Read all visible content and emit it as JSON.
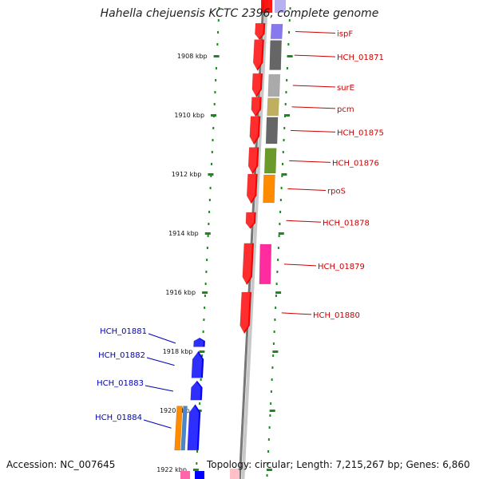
{
  "map": {
    "title": "Hahella chejuensis KCTC 2396, complete genome",
    "accession": "Accession: NC_007645",
    "summary": "Topology: circular; Length: 7,215,267 bp; Genes: 6,860",
    "colors": {
      "forward_label": "#cc0000",
      "reverse_label": "#0000bb",
      "forward_gene": "#ff0000",
      "reverse_gene": "#0000ff",
      "backbone": "#777777",
      "ruler": "#1a8a1a"
    },
    "ticks": [
      {
        "label": "1908 kbp",
        "kbp": 1908
      },
      {
        "label": "1910 kbp",
        "kbp": 1910
      },
      {
        "label": "1912 kbp",
        "kbp": 1912
      },
      {
        "label": "1914 kbp",
        "kbp": 1914
      },
      {
        "label": "1916 kbp",
        "kbp": 1916
      },
      {
        "label": "1918 kbp",
        "kbp": 1918
      },
      {
        "label": "1920 kbp",
        "kbp": 1920
      },
      {
        "label": "1922 kbp",
        "kbp": 1922
      }
    ],
    "forward_genes": [
      {
        "name": "ispF",
        "start_kbp": 1906.9,
        "end_kbp": 1907.45,
        "cog_color": "#8878ee"
      },
      {
        "name": "HCH_01871",
        "start_kbp": 1907.45,
        "end_kbp": 1908.5,
        "cog_color": "#666666"
      },
      {
        "name": "surE",
        "start_kbp": 1908.6,
        "end_kbp": 1909.4,
        "cog_color": "#aaaaaa"
      },
      {
        "name": "pcm",
        "start_kbp": 1909.4,
        "end_kbp": 1910.05,
        "cog_color": "#bfb060"
      },
      {
        "name": "HCH_01875",
        "start_kbp": 1910.05,
        "end_kbp": 1911.0,
        "cog_color": "#666666"
      },
      {
        "name": "HCH_01876",
        "start_kbp": 1911.1,
        "end_kbp": 1912.0,
        "cog_color": "#6b9a2a"
      },
      {
        "name": "rpoS",
        "start_kbp": 1912.0,
        "end_kbp": 1913.0,
        "cog_color": "#ff8c00"
      },
      {
        "name": "HCH_01878",
        "start_kbp": 1913.3,
        "end_kbp": 1913.85,
        "cog_color": ""
      },
      {
        "name": "HCH_01879",
        "start_kbp": 1914.35,
        "end_kbp": 1915.75,
        "cog_color": "#ff2ca0"
      },
      {
        "name": "HCH_01880",
        "start_kbp": 1916.0,
        "end_kbp": 1917.4,
        "cog_color": ""
      }
    ],
    "reverse_genes": [
      {
        "name": "HCH_01881",
        "start_kbp": 1917.55,
        "end_kbp": 1917.85,
        "cog_color": ""
      },
      {
        "name": "HCH_01882",
        "start_kbp": 1918.0,
        "end_kbp": 1918.9,
        "cog_color": ""
      },
      {
        "name": "HCH_01883",
        "start_kbp": 1919.0,
        "end_kbp": 1919.65,
        "cog_color": ""
      },
      {
        "name": "HCH_01884",
        "start_kbp": 1919.8,
        "end_kbp": 1921.35,
        "cog_color": "#ff8c00",
        "cog_color_2": "#4a86c8"
      }
    ]
  }
}
